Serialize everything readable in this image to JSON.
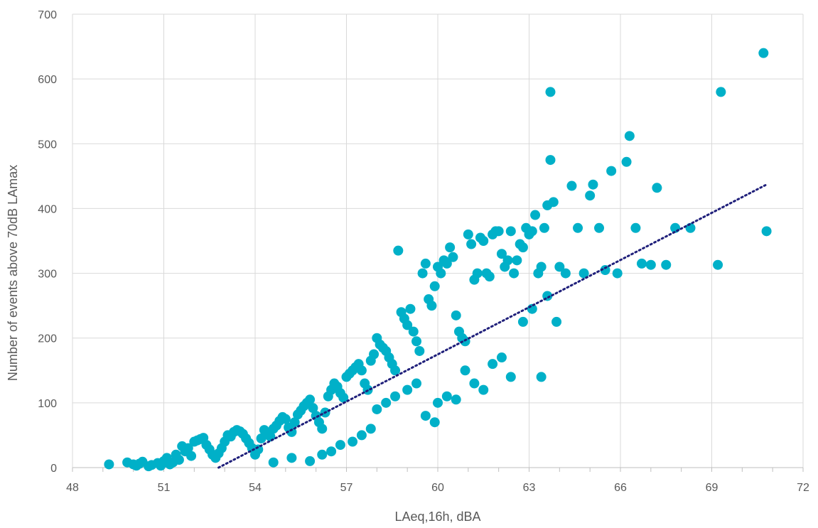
{
  "chart_data": {
    "type": "scatter",
    "title": "",
    "xlabel": "LAeq,16h, dBA",
    "ylabel": "Number of events above 70dB LAmax",
    "xlim": [
      48,
      72
    ],
    "ylim": [
      0,
      700
    ],
    "xticks": [
      48,
      51,
      54,
      57,
      60,
      63,
      66,
      69,
      72
    ],
    "yticks": [
      0,
      100,
      200,
      300,
      400,
      500,
      600,
      700
    ],
    "grid": true,
    "legend": "none",
    "colors": {
      "points": "#00B0C8",
      "trendline": "#1F1F7A",
      "grid": "#D9D9D9",
      "axis": "#BFBFBF",
      "text": "#595959"
    },
    "series": [
      {
        "points": [
          [
            49.2,
            5
          ],
          [
            49.8,
            8
          ],
          [
            50.0,
            5
          ],
          [
            50.1,
            3
          ],
          [
            50.2,
            6
          ],
          [
            50.3,
            9
          ],
          [
            50.5,
            2
          ],
          [
            50.6,
            4
          ],
          [
            50.8,
            7
          ],
          [
            50.9,
            3
          ],
          [
            51.0,
            10
          ],
          [
            51.1,
            15
          ],
          [
            51.2,
            5
          ],
          [
            51.3,
            8
          ],
          [
            51.4,
            20
          ],
          [
            51.5,
            12
          ],
          [
            51.6,
            33
          ],
          [
            51.7,
            25
          ],
          [
            51.8,
            30
          ],
          [
            51.9,
            18
          ],
          [
            52.0,
            40
          ],
          [
            52.1,
            42
          ],
          [
            52.2,
            44
          ],
          [
            52.3,
            46
          ],
          [
            52.4,
            35
          ],
          [
            52.5,
            28
          ],
          [
            52.6,
            20
          ],
          [
            52.7,
            15
          ],
          [
            52.8,
            22
          ],
          [
            52.9,
            30
          ],
          [
            53.0,
            40
          ],
          [
            53.1,
            50
          ],
          [
            53.2,
            48
          ],
          [
            53.3,
            55
          ],
          [
            53.4,
            58
          ],
          [
            53.5,
            56
          ],
          [
            53.6,
            52
          ],
          [
            53.7,
            45
          ],
          [
            53.8,
            38
          ],
          [
            53.9,
            30
          ],
          [
            54.0,
            20
          ],
          [
            54.1,
            28
          ],
          [
            54.2,
            45
          ],
          [
            54.3,
            58
          ],
          [
            54.4,
            52
          ],
          [
            54.5,
            48
          ],
          [
            54.6,
            60
          ],
          [
            54.7,
            65
          ],
          [
            54.8,
            72
          ],
          [
            54.9,
            78
          ],
          [
            55.0,
            75
          ],
          [
            55.1,
            62
          ],
          [
            55.2,
            55
          ],
          [
            55.3,
            70
          ],
          [
            55.4,
            82
          ],
          [
            55.5,
            88
          ],
          [
            55.6,
            95
          ],
          [
            55.7,
            100
          ],
          [
            55.8,
            105
          ],
          [
            55.9,
            92
          ],
          [
            56.0,
            80
          ],
          [
            56.1,
            70
          ],
          [
            56.2,
            60
          ],
          [
            56.3,
            85
          ],
          [
            56.4,
            110
          ],
          [
            56.5,
            120
          ],
          [
            56.6,
            130
          ],
          [
            56.7,
            125
          ],
          [
            56.8,
            115
          ],
          [
            56.9,
            108
          ],
          [
            57.0,
            140
          ],
          [
            57.1,
            145
          ],
          [
            57.2,
            150
          ],
          [
            57.3,
            155
          ],
          [
            57.4,
            160
          ],
          [
            57.5,
            150
          ],
          [
            57.6,
            130
          ],
          [
            57.7,
            120
          ],
          [
            57.8,
            165
          ],
          [
            57.9,
            175
          ],
          [
            58.0,
            200
          ],
          [
            58.1,
            190
          ],
          [
            58.2,
            185
          ],
          [
            58.3,
            180
          ],
          [
            58.4,
            170
          ],
          [
            58.5,
            160
          ],
          [
            58.6,
            150
          ],
          [
            58.7,
            335
          ],
          [
            58.8,
            240
          ],
          [
            58.9,
            230
          ],
          [
            59.0,
            220
          ],
          [
            59.1,
            245
          ],
          [
            59.2,
            210
          ],
          [
            59.3,
            195
          ],
          [
            59.4,
            180
          ],
          [
            59.5,
            300
          ],
          [
            59.6,
            315
          ],
          [
            59.7,
            260
          ],
          [
            59.8,
            250
          ],
          [
            59.9,
            280
          ],
          [
            60.0,
            310
          ],
          [
            60.1,
            300
          ],
          [
            60.2,
            320
          ],
          [
            60.3,
            315
          ],
          [
            60.4,
            340
          ],
          [
            60.5,
            325
          ],
          [
            60.6,
            235
          ],
          [
            60.7,
            210
          ],
          [
            60.8,
            200
          ],
          [
            60.9,
            195
          ],
          [
            61.0,
            360
          ],
          [
            61.1,
            345
          ],
          [
            61.2,
            290
          ],
          [
            61.3,
            300
          ],
          [
            61.4,
            355
          ],
          [
            61.5,
            350
          ],
          [
            61.6,
            300
          ],
          [
            61.7,
            295
          ],
          [
            61.8,
            360
          ],
          [
            61.9,
            365
          ],
          [
            62.0,
            365
          ],
          [
            62.1,
            330
          ],
          [
            62.2,
            310
          ],
          [
            62.3,
            320
          ],
          [
            62.4,
            365
          ],
          [
            62.5,
            300
          ],
          [
            62.6,
            320
          ],
          [
            62.7,
            345
          ],
          [
            62.8,
            340
          ],
          [
            62.9,
            370
          ],
          [
            63.0,
            360
          ],
          [
            63.1,
            365
          ],
          [
            63.2,
            390
          ],
          [
            63.3,
            300
          ],
          [
            63.4,
            310
          ],
          [
            63.5,
            370
          ],
          [
            63.6,
            405
          ],
          [
            63.7,
            580
          ],
          [
            63.7,
            475
          ],
          [
            63.8,
            410
          ],
          [
            64.0,
            310
          ],
          [
            64.2,
            300
          ],
          [
            64.4,
            435
          ],
          [
            64.6,
            370
          ],
          [
            64.8,
            300
          ],
          [
            65.0,
            420
          ],
          [
            65.1,
            437
          ],
          [
            65.3,
            370
          ],
          [
            65.5,
            305
          ],
          [
            65.7,
            458
          ],
          [
            65.9,
            300
          ],
          [
            66.2,
            472
          ],
          [
            66.3,
            512
          ],
          [
            66.5,
            370
          ],
          [
            66.7,
            315
          ],
          [
            67.0,
            313
          ],
          [
            67.2,
            432
          ],
          [
            67.5,
            313
          ],
          [
            67.8,
            370
          ],
          [
            68.3,
            370
          ],
          [
            69.2,
            313
          ],
          [
            69.3,
            580
          ],
          [
            70.7,
            640
          ],
          [
            70.8,
            365
          ],
          [
            58.0,
            90
          ],
          [
            58.3,
            100
          ],
          [
            58.6,
            110
          ],
          [
            59.0,
            120
          ],
          [
            59.3,
            130
          ],
          [
            59.6,
            80
          ],
          [
            59.9,
            70
          ],
          [
            60.0,
            100
          ],
          [
            60.3,
            110
          ],
          [
            60.6,
            105
          ],
          [
            60.9,
            150
          ],
          [
            61.2,
            130
          ],
          [
            61.5,
            120
          ],
          [
            61.8,
            160
          ],
          [
            62.1,
            170
          ],
          [
            62.4,
            140
          ],
          [
            62.8,
            225
          ],
          [
            63.1,
            245
          ],
          [
            63.4,
            140
          ],
          [
            63.6,
            265
          ],
          [
            63.9,
            225
          ],
          [
            57.2,
            40
          ],
          [
            57.5,
            50
          ],
          [
            57.8,
            60
          ],
          [
            56.5,
            25
          ],
          [
            56.8,
            35
          ],
          [
            55.8,
            10
          ],
          [
            56.2,
            20
          ],
          [
            55.2,
            15
          ],
          [
            54.6,
            8
          ]
        ]
      }
    ],
    "trendline": {
      "type": "linear",
      "x": [
        52.8,
        70.8
      ],
      "y": [
        0,
        437
      ]
    }
  }
}
